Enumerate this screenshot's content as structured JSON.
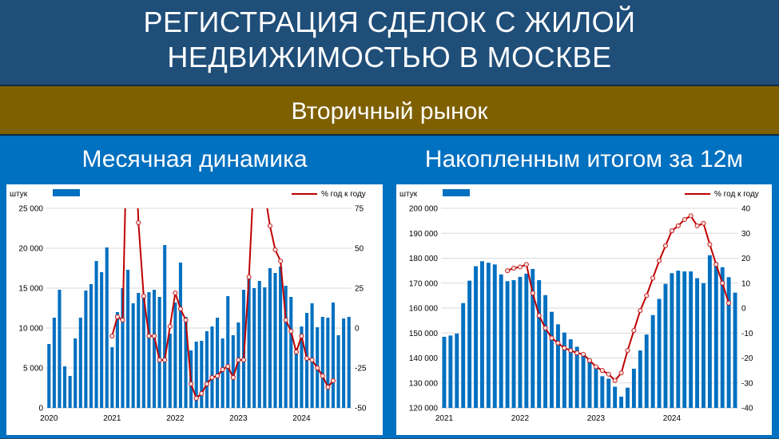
{
  "header": {
    "title_line1": "РЕГИСТРАЦИЯ СДЕЛОК С ЖИЛОЙ",
    "title_line2": "НЕДВИЖИМОСТЬЮ В МОСКВЕ",
    "subtitle": "Вторичный рынок"
  },
  "panels": {
    "left_title": "Месячная динамика",
    "right_title": "Накопленным итогом за 12м"
  },
  "colors": {
    "bar": "#0070c0",
    "line": "#c00000",
    "marker_fill": "#f2dcdb"
  },
  "chart_data": [
    {
      "type": "bar",
      "unit_label": "штук",
      "legend": {
        "bar_label": "",
        "line_label": "% год к году"
      },
      "x_tick_labels": [
        "2020",
        "2021",
        "2022",
        "2023",
        "2024"
      ],
      "y_ticks": [
        "0",
        "5 000",
        "10 000",
        "15 000",
        "20 000",
        "25 000"
      ],
      "y2_ticks": [
        "-50",
        "-25",
        "0",
        "25",
        "50",
        "75"
      ],
      "ylim": [
        0,
        25000
      ],
      "y2lim": [
        -50,
        75
      ],
      "values": [
        8000,
        11300,
        14800,
        5200,
        4000,
        8700,
        11300,
        14700,
        15500,
        18400,
        17000,
        20100,
        7600,
        12000,
        15000,
        17300,
        13100,
        14400,
        13800,
        14500,
        14800,
        13900,
        20400,
        9300,
        13200,
        18200,
        11400,
        7200,
        8300,
        8400,
        9600,
        10200,
        11300,
        8700,
        14000,
        9100,
        10700,
        14800,
        16200,
        15000,
        15900,
        15100,
        17500,
        16900,
        17700,
        15300,
        13900,
        7500,
        10200,
        11900,
        13100,
        10100,
        11400,
        11300,
        13200,
        9100,
        11200,
        11400
      ],
      "line_start_index": 12,
      "line_values": [
        -5,
        7,
        5,
        150,
        150,
        66,
        20,
        -5,
        -5,
        -20,
        -20,
        1,
        22,
        12,
        5,
        -35,
        -44,
        -41,
        -35,
        -31,
        -30,
        -26,
        -24,
        -31,
        -20,
        -20,
        32,
        100,
        110,
        85,
        64,
        49,
        42,
        5,
        -2,
        -15,
        -5,
        -19,
        -20,
        -25,
        -30,
        -37,
        -33
      ]
    },
    {
      "type": "bar",
      "unit_label": "штук",
      "legend": {
        "bar_label": "",
        "line_label": "% год к году"
      },
      "x_tick_labels": [
        "2021",
        "2022",
        "2023",
        "2024"
      ],
      "y_ticks": [
        "120 000",
        "130 000",
        "140 000",
        "150 000",
        "160 000",
        "170 000",
        "180 000",
        "190 000",
        "200 000"
      ],
      "y2_ticks": [
        "-40",
        "-30",
        "-20",
        "-10",
        "0",
        "10",
        "20",
        "30",
        "40"
      ],
      "ylim": [
        120000,
        200000
      ],
      "y2lim": [
        -40,
        40
      ],
      "values": [
        148500,
        149000,
        149800,
        162000,
        171000,
        176800,
        178800,
        178200,
        177500,
        173500,
        170800,
        171200,
        172500,
        173800,
        175700,
        171200,
        165200,
        158500,
        153500,
        150200,
        147500,
        144500,
        141500,
        139200,
        137000,
        132700,
        131700,
        128500,
        124500,
        128100,
        135700,
        143000,
        149400,
        157200,
        163700,
        169700,
        174000,
        175000,
        174700,
        174700,
        172000,
        170000,
        181200,
        178400,
        176400,
        172400,
        166200
      ],
      "line_start_index": 10,
      "line_values": [
        15,
        16,
        16.5,
        17.5,
        6,
        -3,
        -8,
        -12,
        -14,
        -16,
        -17,
        -18,
        -18.5,
        -21,
        -23.5,
        -25,
        -26.5,
        -29,
        -26,
        -17,
        -9,
        -1,
        5,
        12,
        19,
        25,
        31,
        33,
        35.5,
        37,
        33,
        34,
        25.5,
        17.5,
        10,
        2
      ]
    }
  ]
}
